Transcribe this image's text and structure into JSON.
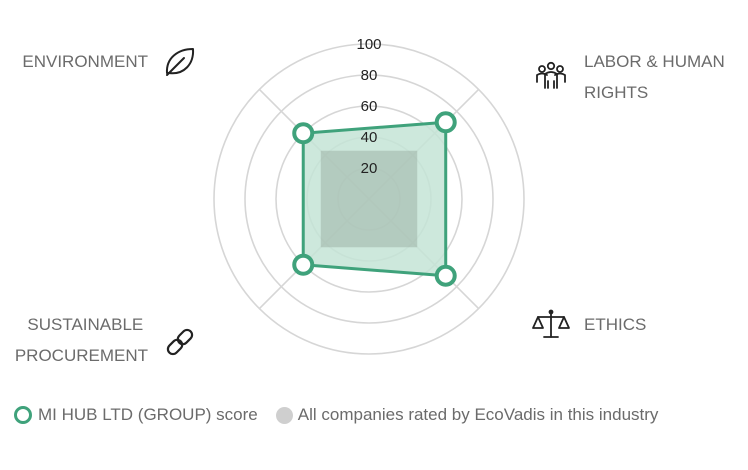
{
  "chart_data": {
    "type": "radar",
    "axes": [
      {
        "key": "environment",
        "lines": [
          "ENVIRONMENT"
        ],
        "icon": "leaf-icon"
      },
      {
        "key": "labor",
        "lines": [
          "LABOR & HUMAN",
          "RIGHTS"
        ],
        "icon": "people-icon"
      },
      {
        "key": "ethics",
        "lines": [
          "ETHICS"
        ],
        "icon": "scales-icon"
      },
      {
        "key": "procurement",
        "lines": [
          "SUSTAINABLE",
          "PROCUREMENT"
        ],
        "icon": "chain-link-icon"
      }
    ],
    "ticks": [
      "20",
      "40",
      "60",
      "80",
      "100"
    ],
    "rlim": [
      0,
      100
    ],
    "series": [
      {
        "name": "MI HUB LTD (GROUP) score",
        "values": [
          60,
          70,
          70,
          60
        ],
        "color": "#3fa27b",
        "fill": "#c4e4d6"
      },
      {
        "name": "All companies rated by EcoVadis in this industry",
        "values": [
          44,
          44,
          44,
          44
        ],
        "color": "#cfcfcf",
        "fill": "#9fb3a8"
      }
    ],
    "grid": true,
    "legend_position": "bottom-left"
  },
  "legend": {
    "company_label": "MI HUB LTD (GROUP) score",
    "industry_label": "All companies rated by EcoVadis in this industry"
  }
}
